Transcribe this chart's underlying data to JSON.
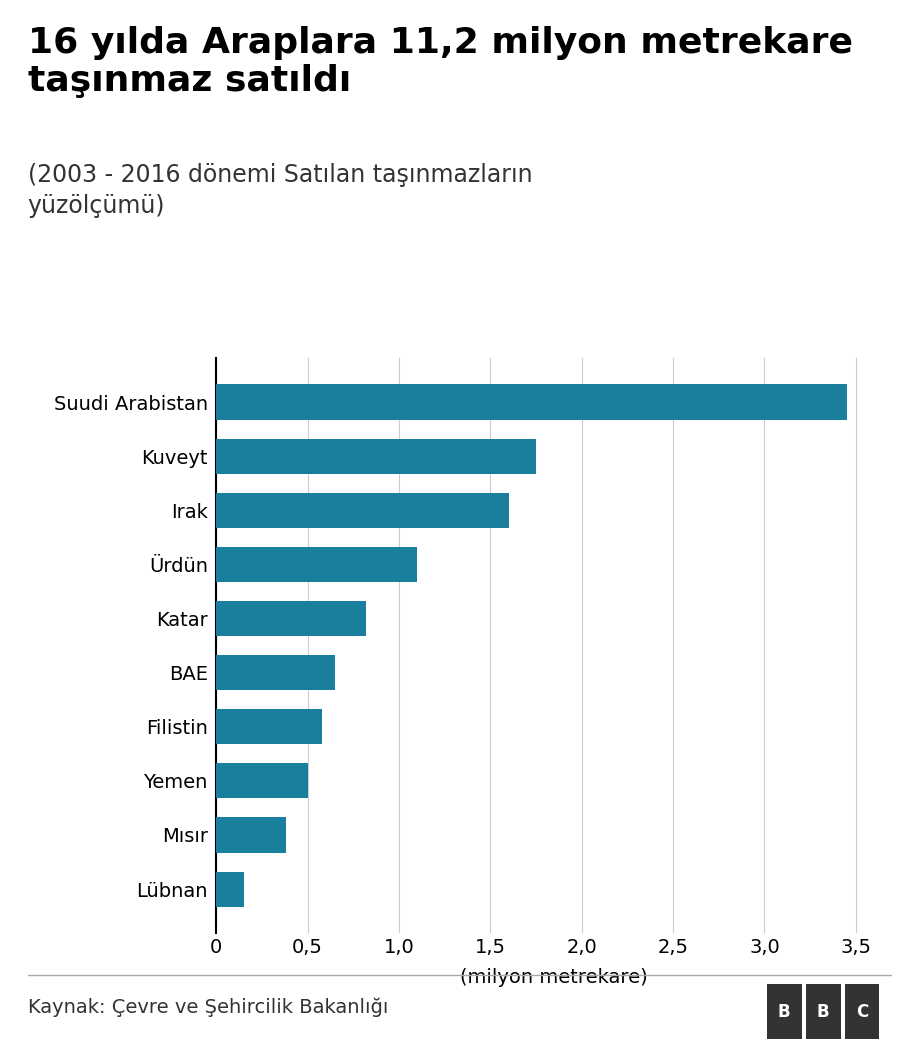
{
  "title_line1": "16 yılda Araplara 11,2 milyon metrekare",
  "title_line2": "taşınmaz satıldı",
  "subtitle": "(2003 - 2016 dönemi Satılan taşınmazların\nyüzölçümü)",
  "categories": [
    "Suudi Arabistan",
    "Kuveyt",
    "Irak",
    "Ürdün",
    "Katar",
    "BAE",
    "Filistin",
    "Yemen",
    "Mısır",
    "Lübnan"
  ],
  "values": [
    3.45,
    1.75,
    1.6,
    1.1,
    0.82,
    0.65,
    0.58,
    0.5,
    0.38,
    0.15
  ],
  "bar_color": "#1a7f9c",
  "xlabel": "(milyon metrekare)",
  "xlim": [
    0,
    3.7
  ],
  "xticks": [
    0.0,
    0.5,
    1.0,
    1.5,
    2.0,
    2.5,
    3.0,
    3.5
  ],
  "xtick_labels": [
    "0",
    "0,5",
    "1,0",
    "1,5",
    "2,0",
    "2,5",
    "3,0",
    "3,5"
  ],
  "source_text": "Kaynak: Çevre ve Şehircilik Bakanlığı",
  "background_color": "#ffffff",
  "title_fontsize": 26,
  "subtitle_fontsize": 17,
  "bar_label_fontsize": 14,
  "axis_fontsize": 14,
  "source_fontsize": 14
}
